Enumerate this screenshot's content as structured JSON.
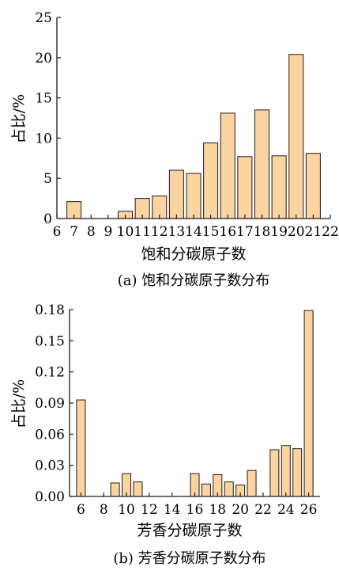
{
  "chart_data": [
    {
      "type": "bar",
      "caption": "(a) 饱和分碳原子数分布",
      "xlabel": "饱和分碳原子数",
      "ylabel": "占比/%",
      "xlim": [
        6,
        22
      ],
      "ylim": [
        0,
        25
      ],
      "xticks": [
        6,
        7,
        8,
        9,
        10,
        11,
        12,
        13,
        14,
        15,
        16,
        17,
        18,
        19,
        20,
        21,
        22
      ],
      "yticks": [
        0,
        5,
        10,
        15,
        20,
        25
      ],
      "ytick_labels": [
        "0",
        "5",
        "10",
        "15",
        "20",
        "25"
      ],
      "bar_color": "#fbd5a1",
      "x": [
        7,
        10,
        11,
        12,
        13,
        14,
        15,
        16,
        17,
        18,
        19,
        20,
        21
      ],
      "values": [
        2.1,
        0.9,
        2.5,
        2.8,
        6.0,
        5.6,
        9.4,
        13.1,
        7.7,
        13.5,
        7.8,
        20.4,
        8.1
      ]
    },
    {
      "type": "bar",
      "caption": "(b) 芳香分碳原子数分布",
      "xlabel": "芳香分碳原子数",
      "ylabel": "占比/%",
      "xlim": [
        5,
        27
      ],
      "ylim": [
        0,
        0.18
      ],
      "xticks": [
        6,
        8,
        10,
        12,
        14,
        16,
        18,
        20,
        22,
        24,
        26
      ],
      "yticks": [
        0,
        0.03,
        0.06,
        0.09,
        0.12,
        0.15,
        0.18
      ],
      "ytick_labels": [
        "0.00",
        "0.03",
        "0.06",
        "0.09",
        "0.12",
        "0.15",
        "0.18"
      ],
      "bar_color": "#fbd5a1",
      "x": [
        6,
        9,
        10,
        11,
        16,
        17,
        18,
        19,
        20,
        21,
        23,
        24,
        25,
        26
      ],
      "values": [
        0.093,
        0.013,
        0.022,
        0.014,
        0.022,
        0.012,
        0.021,
        0.014,
        0.011,
        0.025,
        0.045,
        0.049,
        0.046,
        0.179
      ]
    }
  ]
}
